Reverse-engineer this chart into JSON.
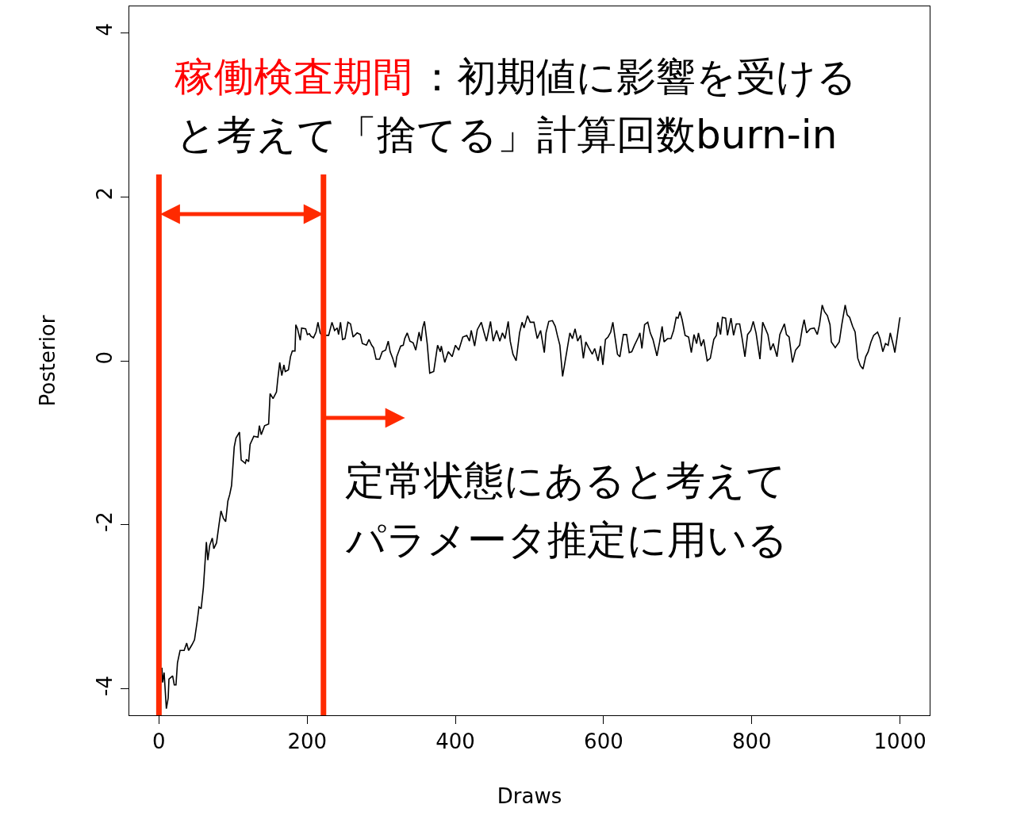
{
  "chart_data": {
    "type": "line",
    "xlabel": "Draws",
    "ylabel": "Posterior",
    "xlim": [
      -40,
      1040
    ],
    "ylim": [
      -4.32,
      4.32
    ],
    "xticks": [
      0,
      200,
      400,
      600,
      800,
      1000
    ],
    "yticks": [
      -4,
      -2,
      0,
      2,
      4
    ],
    "marker": "none",
    "line_style": "solid",
    "ref_lines": [
      {
        "axis": "x",
        "value": 0,
        "color": "#ff2a00"
      },
      {
        "axis": "x",
        "value": 222,
        "color": "#ff2a00"
      }
    ],
    "annotations": [
      "稼働検査期間",
      "：初期値に影響を受ける",
      "と考えて「捨てる」計算回数burn-in",
      "定常状態にあると考えて",
      "パラメータ推定に用いる"
    ],
    "series": [
      {
        "color": "#000000",
        "x": [
          4,
          5,
          7,
          10,
          12.5,
          13.5,
          18.5,
          20.7,
          23,
          25,
          28.5,
          34,
          37.4,
          40,
          44.6,
          48,
          51.7,
          54,
          57,
          60,
          64,
          66,
          68.5,
          72,
          74,
          77.7,
          81,
          83.7,
          87,
          90,
          93,
          95.5,
          98,
          101.6,
          104,
          108.7,
          111,
          116.6,
          118,
          121,
          123,
          128,
          133.7,
          135.5,
          138,
          142.6,
          148,
          150,
          154,
          158.6,
          160.4,
          163,
          165.8,
          168.6,
          170.4,
          174.7,
          177.5,
          180,
          183.6,
          184.7,
          187,
          190.7,
          192.5,
          198,
          200.3,
          203,
          205,
          208.5,
          212,
          214.6,
          217.5,
          220,
          229,
          233.5,
          237,
          240.6,
          242.4,
          245,
          247.8,
          251,
          255,
          258.5,
          262,
          267.4,
          271.7,
          274.5,
          280,
          283.4,
          287,
          289.5,
          293,
          297.7,
          301.3,
          305.9,
          309.4,
          312,
          315.5,
          319,
          320.9,
          326.2,
          329.7,
          331.6,
          335,
          338.7,
          343,
          346.5,
          351,
          353.7,
          355.8,
          358.3,
          362,
          365.4,
          370.8,
          376,
          379.7,
          381,
          385.7,
          390.4,
          395.7,
          400,
          404.6,
          410,
          415.4,
          419,
          421.4,
          426,
          429.6,
          435,
          438.5,
          442,
          447.4,
          451,
          455.6,
          460,
          463.5,
          467,
          471.3,
          474,
          477.7,
          482,
          486.6,
          490,
          492.7,
          497.3,
          501,
          506,
          510.5,
          515,
          520,
          522.3,
          526,
          531,
          534.8,
          537.6,
          541,
          544.7,
          547.3,
          551,
          554.5,
          558,
          561.5,
          565,
          569,
          572.7,
          576,
          579.9,
          584.7,
          588,
          592.5,
          596,
          599,
          602.5,
          606,
          609.6,
          612.5,
          615,
          618.7,
          622,
          626.7,
          631,
          634.6,
          638,
          641.7,
          647,
          649,
          651.7,
          655.3,
          659.6,
          663,
          666.6,
          672,
          675.6,
          679,
          681.6,
          686.3,
          690.9,
          694.5,
          698,
          700.5,
          703,
          706,
          710,
          714.7,
          718.4,
          722,
          725.5,
          728,
          731.6,
          735.1,
          739.8,
          744,
          748.7,
          752.2,
          754,
          757.8,
          760.3,
          764.7,
          767.2,
          771.9,
          775.4,
          779,
          783.6,
          787,
          790.7,
          794.3,
          798.6,
          802,
          805.7,
          811,
          814.7,
          818,
          821.7,
          825.3,
          828.9,
          834,
          837.8,
          844,
          846.7,
          850.3,
          854.9,
          859,
          864.5,
          868,
          870.6,
          874,
          878.8,
          884.2,
          888.4,
          891.3,
          895,
          898,
          902,
          905.5,
          907.3,
          912.6,
          918,
          921.6,
          926,
          928.7,
          932,
          936,
          939.4,
          943,
          946.5,
          950,
          953.7,
          957,
          960.8,
          964.4,
          969.7,
          973,
          976.8,
          980.4,
          984,
          986.8,
          991,
          993,
          995.6,
          999,
          1000
        ],
        "values": [
          -3.74,
          -3.92,
          -3.8,
          -4.24,
          -4.11,
          -3.88,
          -3.84,
          -3.95,
          -3.95,
          -3.68,
          -3.53,
          -3.53,
          -3.44,
          -3.53,
          -3.46,
          -3.4,
          -3.17,
          -3.0,
          -3.02,
          -2.76,
          -2.21,
          -2.43,
          -2.25,
          -2.16,
          -2.29,
          -2.22,
          -2.0,
          -1.83,
          -1.92,
          -1.96,
          -1.71,
          -1.63,
          -1.52,
          -1.05,
          -0.94,
          -0.87,
          -1.21,
          -1.25,
          -1.2,
          -1.23,
          -1.02,
          -0.92,
          -0.93,
          -0.79,
          -0.9,
          -0.79,
          -0.77,
          -0.4,
          -0.46,
          -0.38,
          -0.22,
          -0.02,
          -0.18,
          -0.05,
          -0.13,
          -0.11,
          0.05,
          0.12,
          0.12,
          0.44,
          0.39,
          0.25,
          0.4,
          0.39,
          0.32,
          0.33,
          0.3,
          0.28,
          0.35,
          0.47,
          0.34,
          0.31,
          0.31,
          0.47,
          0.37,
          0.4,
          0.32,
          0.47,
          0.26,
          0.27,
          0.47,
          0.45,
          0.29,
          0.34,
          0.32,
          0.21,
          0.19,
          0.26,
          0.19,
          0.16,
          0.02,
          0.02,
          0.11,
          0.13,
          0.24,
          0.11,
          0.03,
          -0.08,
          0.05,
          0.18,
          0.19,
          0.27,
          0.34,
          0.24,
          0.22,
          0.13,
          0.35,
          0.24,
          0.4,
          0.48,
          0.21,
          -0.15,
          -0.13,
          0.19,
          0.11,
          0.18,
          -0.02,
          0.11,
          0.05,
          0.19,
          0.13,
          0.29,
          0.31,
          0.24,
          0.37,
          0.18,
          0.38,
          0.47,
          0.35,
          0.24,
          0.48,
          0.24,
          0.37,
          0.24,
          0.34,
          0.27,
          0.48,
          0.24,
          0.08,
          0.0,
          0.34,
          0.47,
          0.4,
          0.55,
          0.47,
          0.47,
          0.27,
          0.37,
          0.1,
          0.34,
          0.48,
          0.49,
          0.42,
          0.31,
          0.19,
          -0.19,
          -0.05,
          0.15,
          0.34,
          0.27,
          0.39,
          0.24,
          0.31,
          0.03,
          0.23,
          0.16,
          0.08,
          0.15,
          0.0,
          0.18,
          -0.05,
          0.26,
          0.29,
          0.35,
          0.47,
          0.31,
          0.08,
          0.05,
          0.32,
          0.32,
          0.1,
          0.11,
          0.19,
          0.29,
          0.34,
          0.15,
          0.44,
          0.47,
          0.34,
          0.26,
          0.06,
          0.23,
          0.42,
          0.23,
          0.27,
          0.27,
          0.37,
          0.53,
          0.52,
          0.6,
          0.5,
          0.31,
          0.29,
          0.1,
          0.32,
          0.21,
          0.34,
          0.18,
          0.26,
          0.0,
          0.03,
          0.26,
          0.31,
          0.47,
          0.32,
          0.53,
          0.52,
          0.31,
          0.52,
          0.31,
          0.45,
          0.45,
          0.27,
          0.05,
          0.32,
          0.37,
          0.48,
          0.34,
          0.02,
          0.47,
          0.4,
          0.32,
          0.13,
          0.21,
          0.05,
          0.32,
          0.45,
          0.32,
          0.29,
          -0.02,
          0.13,
          0.19,
          0.39,
          0.5,
          0.34,
          0.39,
          0.4,
          0.32,
          0.44,
          0.68,
          0.6,
          0.55,
          0.44,
          0.23,
          0.16,
          0.23,
          0.45,
          0.68,
          0.56,
          0.53,
          0.42,
          0.35,
          0.03,
          -0.06,
          -0.1,
          0.05,
          0.11,
          0.23,
          0.31,
          0.35,
          0.27,
          0.11,
          0.21,
          0.19,
          0.34,
          0.19,
          0.1,
          0.26,
          0.48,
          0.53
        ]
      }
    ]
  }
}
